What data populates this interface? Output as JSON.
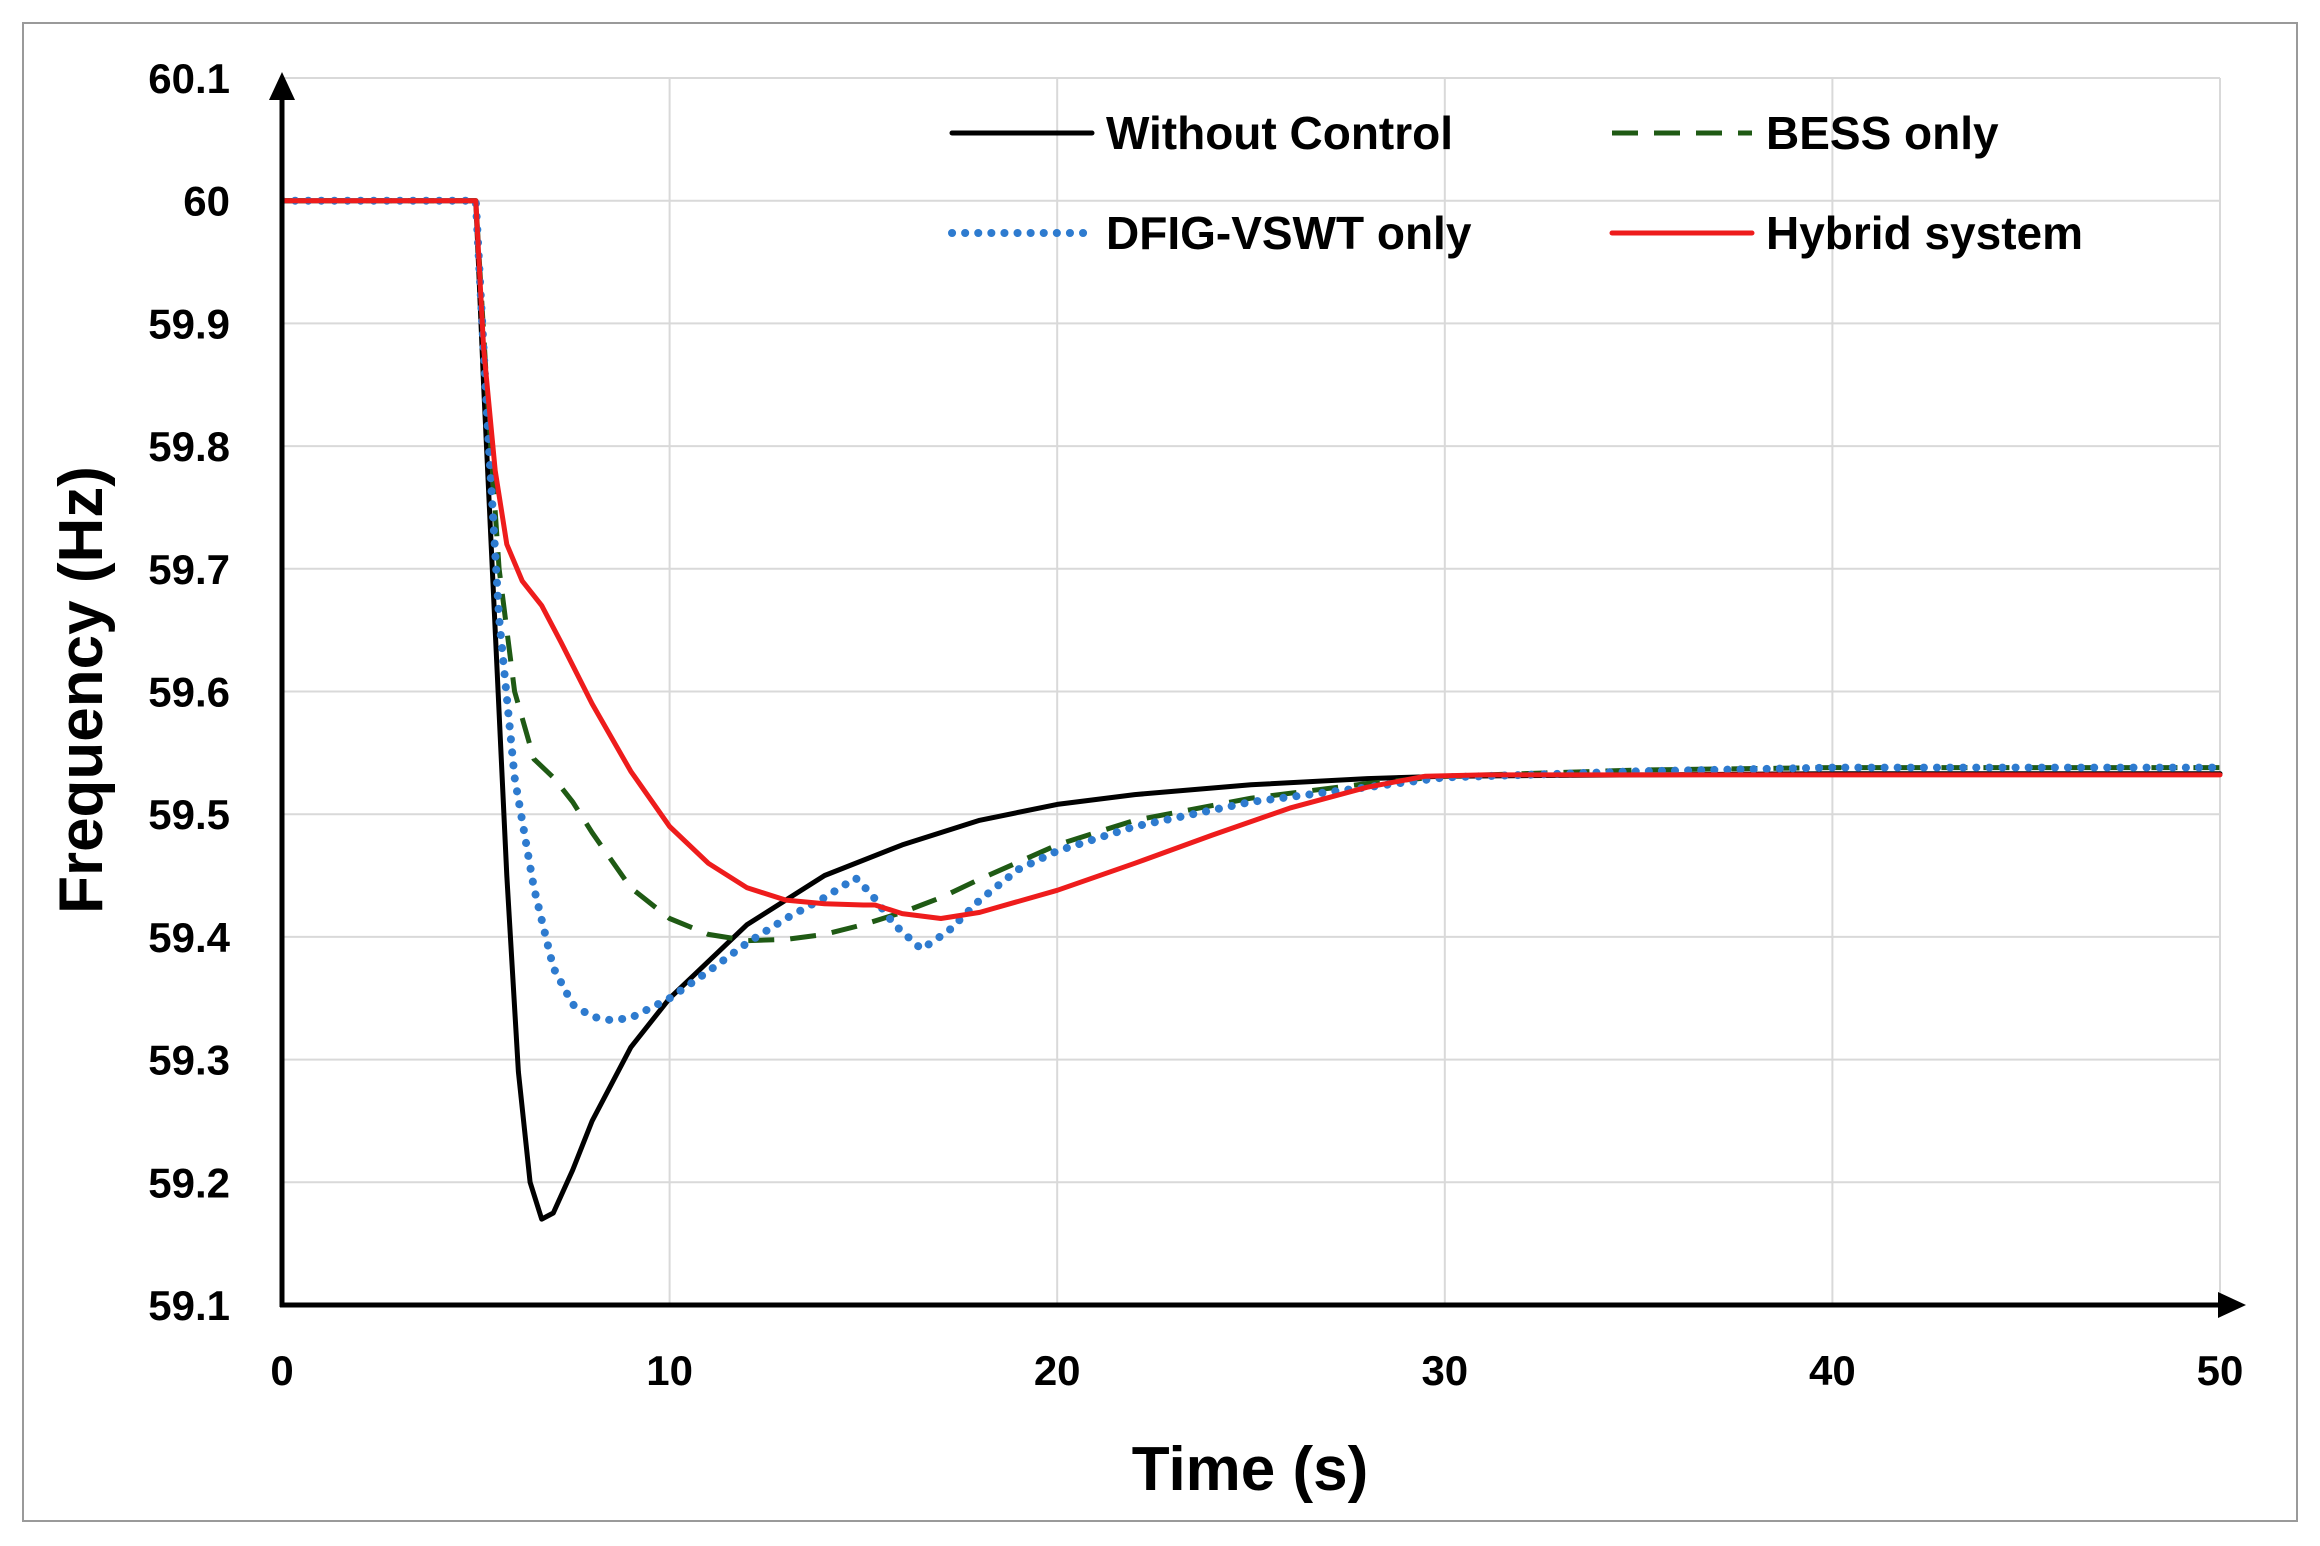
{
  "chart_data": {
    "type": "line",
    "title": "",
    "xlabel": "Time (s)",
    "ylabel": "Frequency (Hz)",
    "xlim": [
      0,
      50
    ],
    "ylim": [
      59.1,
      60.1
    ],
    "xticks": [
      0,
      10,
      20,
      30,
      40,
      50
    ],
    "yticks": [
      59.1,
      59.2,
      59.3,
      59.4,
      59.5,
      59.6,
      59.7,
      59.8,
      59.9,
      60,
      60.1
    ],
    "xtick_labels": [
      "0",
      "10",
      "20",
      "30",
      "40",
      "50"
    ],
    "ytick_labels": [
      "59.1",
      "59.2",
      "59.3",
      "59.4",
      "59.5",
      "59.6",
      "59.7",
      "59.8",
      "59.9",
      "60",
      "60.1"
    ],
    "grid": true,
    "legend_position": "top-right",
    "series": [
      {
        "name": "Without Control",
        "color": "#000000",
        "style": "solid",
        "x": [
          0,
          5,
          5.2,
          5.5,
          5.8,
          6.1,
          6.4,
          6.7,
          7.0,
          7.5,
          8.0,
          9.0,
          10.0,
          12.0,
          14.0,
          16.0,
          18.0,
          20.0,
          22.0,
          25.0,
          28.0,
          30.0,
          35.0,
          40.0,
          50.0
        ],
        "y": [
          60.0,
          60.0,
          59.85,
          59.65,
          59.45,
          59.29,
          59.2,
          59.17,
          59.175,
          59.21,
          59.25,
          59.31,
          59.35,
          59.41,
          59.45,
          59.475,
          59.495,
          59.508,
          59.516,
          59.524,
          59.529,
          59.531,
          59.532,
          59.533,
          59.533
        ]
      },
      {
        "name": "BESS only",
        "color": "#1f5a14",
        "style": "dashed",
        "x": [
          0,
          5,
          5.3,
          5.6,
          6.0,
          6.5,
          7.0,
          7.5,
          8.0,
          9.0,
          10.0,
          11.0,
          12.0,
          13.0,
          14.0,
          15.0,
          16.0,
          17.0,
          18.0,
          20.0,
          22.0,
          25.0,
          28.0,
          30.0,
          35.0,
          40.0,
          50.0
        ],
        "y": [
          60.0,
          60.0,
          59.84,
          59.7,
          59.6,
          59.545,
          59.53,
          59.51,
          59.485,
          59.44,
          59.415,
          59.402,
          59.397,
          59.398,
          59.402,
          59.41,
          59.42,
          59.432,
          59.447,
          59.475,
          59.495,
          59.513,
          59.525,
          59.531,
          59.536,
          59.538,
          59.538
        ]
      },
      {
        "name": "DFIG-VSWT only",
        "color": "#2e7bcf",
        "style": "dotted",
        "x": [
          0,
          5,
          5.3,
          5.6,
          6.0,
          6.5,
          7.0,
          7.5,
          8.0,
          8.5,
          9.0,
          10.0,
          11.0,
          12.0,
          13.0,
          14.0,
          14.8,
          15.2,
          15.8,
          16.5,
          17.2,
          18.0,
          19.0,
          20.0,
          22.0,
          25.0,
          28.0,
          30.0,
          35.0,
          40.0,
          50.0
        ],
        "y": [
          60.0,
          60.0,
          59.82,
          59.66,
          59.53,
          59.44,
          59.375,
          59.345,
          59.335,
          59.332,
          59.334,
          59.35,
          59.372,
          59.395,
          59.415,
          59.432,
          59.448,
          59.435,
          59.41,
          59.39,
          59.405,
          59.43,
          59.455,
          59.47,
          59.49,
          59.51,
          59.522,
          59.53,
          59.535,
          59.538,
          59.538
        ]
      },
      {
        "name": "Hybrid system",
        "color": "#ee1c1c",
        "style": "solid",
        "x": [
          0,
          5,
          5.2,
          5.5,
          5.8,
          6.2,
          6.7,
          7.2,
          8.0,
          9.0,
          10.0,
          11.0,
          12.0,
          13.0,
          14.0,
          15.0,
          15.3,
          16.0,
          17.0,
          18.0,
          20.0,
          22.0,
          24.0,
          26.0,
          28.0,
          29.5,
          31.0,
          35.0,
          40.0,
          50.0
        ],
        "y": [
          60.0,
          60.0,
          59.88,
          59.78,
          59.72,
          59.69,
          59.67,
          59.64,
          59.59,
          59.535,
          59.49,
          59.46,
          59.44,
          59.43,
          59.427,
          59.426,
          59.426,
          59.419,
          59.415,
          59.42,
          59.438,
          59.46,
          59.483,
          59.505,
          59.522,
          59.531,
          59.532,
          59.532,
          59.532,
          59.532
        ]
      }
    ]
  }
}
